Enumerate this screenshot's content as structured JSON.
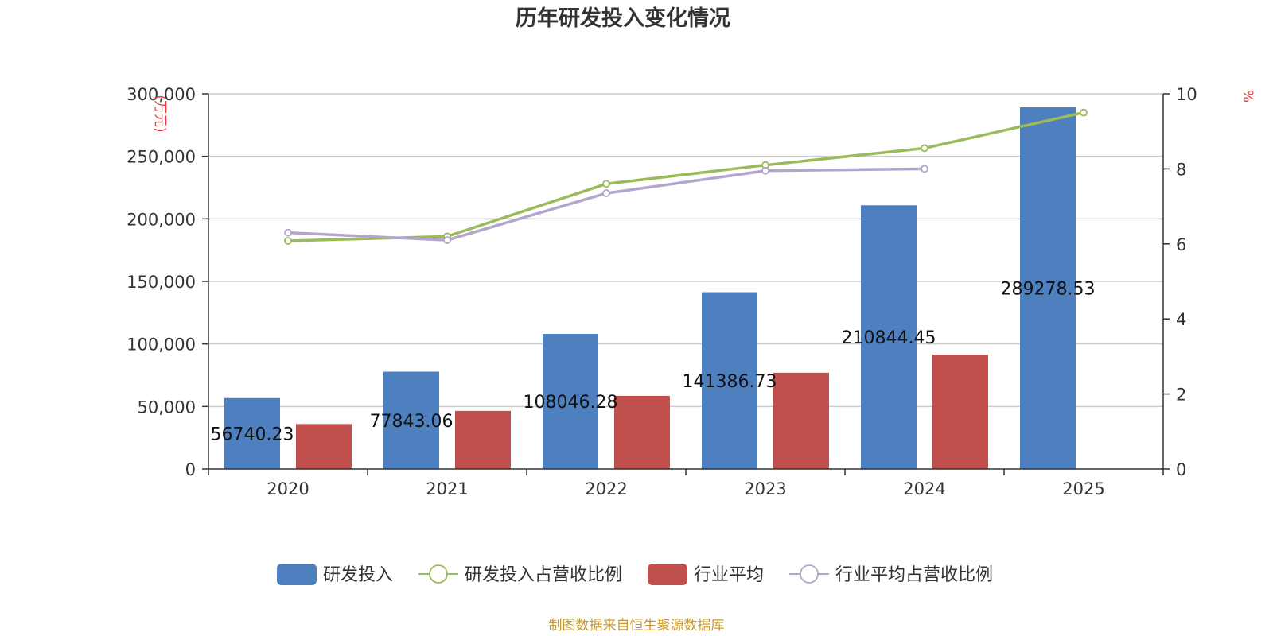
{
  "chart_data": {
    "type": "bar",
    "title": "历年研发投入变化情况",
    "categories": [
      "2020",
      "2021",
      "2022",
      "2023",
      "2024",
      "2025"
    ],
    "y_left": {
      "unit_label": "(万元)",
      "range": [
        0,
        300000
      ],
      "ticks": [
        "0",
        "50,000",
        "100,000",
        "150,000",
        "200,000",
        "250,000",
        "300,000"
      ]
    },
    "y_right": {
      "unit_label": "%",
      "range": [
        0,
        10
      ],
      "ticks": [
        "0",
        "2",
        "4",
        "6",
        "8",
        "10"
      ]
    },
    "grid": true,
    "legend_position": "bottom",
    "series": [
      {
        "name": "研发投入",
        "kind": "bar",
        "axis": "left",
        "color": "#4e7fbe",
        "values": [
          56740.23,
          77843.06,
          108046.28,
          141386.73,
          210844.45,
          289278.53
        ],
        "labels": [
          "56740.23",
          "77843.06",
          "108046.28",
          "141386.73",
          "210844.45",
          "289278.53"
        ]
      },
      {
        "name": "研发投入占营收比例",
        "kind": "line",
        "axis": "right",
        "color": "#9bbb59",
        "values": [
          6.08,
          6.2,
          7.6,
          8.1,
          8.55,
          9.5
        ]
      },
      {
        "name": "行业平均",
        "kind": "bar",
        "axis": "left",
        "color": "#c0504d",
        "values": [
          36000,
          46500,
          58500,
          77000,
          91500,
          null
        ]
      },
      {
        "name": "行业平均占营收比例",
        "kind": "line",
        "axis": "right",
        "color": "#b3a5cc",
        "values": [
          6.3,
          6.1,
          7.35,
          7.95,
          8.0,
          null
        ]
      }
    ],
    "source": "制图数据来自恒生聚源数据库"
  }
}
